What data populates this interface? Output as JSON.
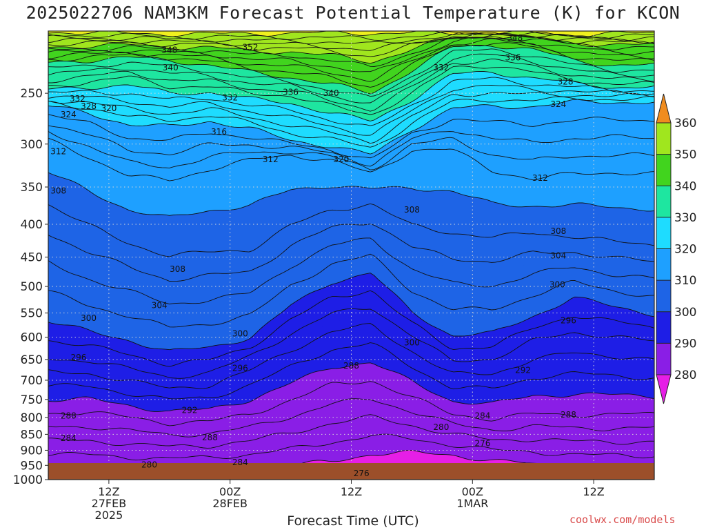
{
  "chart_data": {
    "type": "heatmap",
    "title": "2025022706 NAM3KM Forecast Potential Temperature (K) for KCON",
    "xlabel": "Forecast Time (UTC)",
    "ylabel": "",
    "credit": "coolwx.com/models",
    "y_axis": {
      "scale": "log",
      "inverted": true,
      "ylim": [
        1000,
        200
      ],
      "ticks": [
        250,
        300,
        350,
        400,
        450,
        500,
        550,
        600,
        650,
        700,
        750,
        800,
        850,
        900,
        950,
        1000
      ]
    },
    "x_axis": {
      "range_hours": [
        0,
        60
      ],
      "ticks": [
        {
          "hour": 6,
          "labels": [
            "12Z",
            "27FEB",
            "2025"
          ]
        },
        {
          "hour": 18,
          "labels": [
            "00Z",
            "28FEB"
          ]
        },
        {
          "hour": 30,
          "labels": [
            "12Z"
          ]
        },
        {
          "hour": 42,
          "labels": [
            "00Z",
            "1MAR"
          ]
        },
        {
          "hour": 54,
          "labels": [
            "12Z"
          ]
        }
      ]
    },
    "colorbar": {
      "unit": "K",
      "levels": [
        280,
        290,
        300,
        310,
        320,
        330,
        340,
        350,
        360
      ],
      "colors": [
        "#e61ee6",
        "#8a1ee6",
        "#1e1ee6",
        "#1e64e6",
        "#1ea0ff",
        "#1edcff",
        "#1ee6a0",
        "#41d41e",
        "#a0e61e",
        "#f0f01e",
        "#f0c81e",
        "#f08c1e"
      ]
    },
    "contour_interval_K": 2,
    "isentrope_pressure_hPa": {
      "hours": [
        0,
        4,
        8,
        12,
        16,
        20,
        24,
        28,
        32,
        36,
        40,
        44,
        48,
        52,
        56,
        60
      ],
      "levels": [
        {
          "theta": 280,
          "p": [
            958,
            963,
            967,
            968,
            964,
            958,
            951,
            937,
            912,
            908,
            915,
            934,
            946,
            960,
            962,
            964
          ]
        },
        {
          "theta": 288,
          "p": [
            788,
            785,
            800,
            816,
            812,
            790,
            752,
            712,
            700,
            745,
            790,
            805,
            790,
            792,
            792,
            790
          ]
        },
        {
          "theta": 296,
          "p": [
            648,
            652,
            672,
            692,
            682,
            642,
            592,
            552,
            538,
            596,
            654,
            648,
            608,
            590,
            598,
            610
          ]
        },
        {
          "theta": 300,
          "p": [
            566,
            588,
            606,
            632,
            622,
            600,
            536,
            492,
            476,
            548,
            596,
            592,
            556,
            520,
            538,
            552
          ]
        },
        {
          "theta": 308,
          "p": [
            372,
            402,
            428,
            448,
            442,
            438,
            402,
            380,
            372,
            402,
            412,
            420,
            412,
            418,
            426,
            430
          ]
        },
        {
          "theta": 312,
          "p": [
            296,
            314,
            336,
            342,
            328,
            318,
            312,
            318,
            334,
            306,
            306,
            330,
            340,
            334,
            332,
            334
          ]
        },
        {
          "theta": 320,
          "p": [
            262,
            268,
            280,
            282,
            276,
            284,
            296,
            302,
            312,
            284,
            264,
            262,
            262,
            258,
            258,
            258
          ]
        },
        {
          "theta": 332,
          "p": [
            244,
            240,
            236,
            244,
            244,
            250,
            252,
            262,
            270,
            250,
            228,
            226,
            232,
            238,
            242,
            242
          ]
        },
        {
          "theta": 340,
          "p": [
            224,
            222,
            220,
            222,
            226,
            232,
            236,
            242,
            250,
            230,
            212,
            210,
            214,
            222,
            226,
            226
          ]
        },
        {
          "theta": 348,
          "p": [
            214,
            213,
            212,
            214,
            214,
            218,
            218,
            222,
            228,
            216,
            206,
            204,
            206,
            210,
            212,
            212
          ]
        },
        {
          "theta": 356,
          "p": [
            205,
            205,
            205,
            206,
            206,
            207,
            207,
            208,
            210,
            206,
            203,
            202,
            203,
            205,
            205,
            205
          ]
        }
      ]
    },
    "contour_labels": [
      {
        "text": "348",
        "hour": 12.0,
        "p": 214
      },
      {
        "text": "352",
        "hour": 20.0,
        "p": 212
      },
      {
        "text": "348",
        "hour": 46.2,
        "p": 205
      },
      {
        "text": "336",
        "hour": 46.0,
        "p": 220
      },
      {
        "text": "340",
        "hour": 12.1,
        "p": 228
      },
      {
        "text": "332",
        "hour": 38.9,
        "p": 228
      },
      {
        "text": "328",
        "hour": 51.2,
        "p": 240
      },
      {
        "text": "324",
        "hour": 50.5,
        "p": 260
      },
      {
        "text": "332",
        "hour": 2.9,
        "p": 255
      },
      {
        "text": "328",
        "hour": 4.0,
        "p": 262
      },
      {
        "text": "320",
        "hour": 6.0,
        "p": 264
      },
      {
        "text": "324",
        "hour": 2.0,
        "p": 270
      },
      {
        "text": "332",
        "hour": 18.0,
        "p": 254
      },
      {
        "text": "336",
        "hour": 24.0,
        "p": 249
      },
      {
        "text": "340",
        "hour": 28.0,
        "p": 250
      },
      {
        "text": "316",
        "hour": 16.9,
        "p": 287
      },
      {
        "text": "312",
        "hour": 1.0,
        "p": 308
      },
      {
        "text": "312",
        "hour": 22.0,
        "p": 317
      },
      {
        "text": "320",
        "hour": 29.0,
        "p": 317
      },
      {
        "text": "312",
        "hour": 48.7,
        "p": 339
      },
      {
        "text": "308",
        "hour": 1.0,
        "p": 355
      },
      {
        "text": "308",
        "hour": 36.0,
        "p": 380
      },
      {
        "text": "308",
        "hour": 50.5,
        "p": 410
      },
      {
        "text": "304",
        "hour": 50.5,
        "p": 448
      },
      {
        "text": "308",
        "hour": 12.8,
        "p": 470
      },
      {
        "text": "300",
        "hour": 50.4,
        "p": 497
      },
      {
        "text": "304",
        "hour": 11.0,
        "p": 535
      },
      {
        "text": "300",
        "hour": 4.0,
        "p": 560
      },
      {
        "text": "300",
        "hour": 19.0,
        "p": 592
      },
      {
        "text": "300",
        "hour": 36.0,
        "p": 612
      },
      {
        "text": "296",
        "hour": 51.5,
        "p": 565
      },
      {
        "text": "296",
        "hour": 3.0,
        "p": 645
      },
      {
        "text": "296",
        "hour": 19.0,
        "p": 670
      },
      {
        "text": "288",
        "hour": 30.0,
        "p": 665
      },
      {
        "text": "292",
        "hour": 47.0,
        "p": 675
      },
      {
        "text": "292",
        "hour": 14.0,
        "p": 780
      },
      {
        "text": "288",
        "hour": 2.0,
        "p": 795
      },
      {
        "text": "288",
        "hour": 16.0,
        "p": 860
      },
      {
        "text": "284",
        "hour": 2.0,
        "p": 862
      },
      {
        "text": "284",
        "hour": 43.0,
        "p": 795
      },
      {
        "text": "288",
        "hour": 51.5,
        "p": 792
      },
      {
        "text": "280",
        "hour": 38.9,
        "p": 828
      },
      {
        "text": "276",
        "hour": 43.0,
        "p": 878
      },
      {
        "text": "280",
        "hour": 10.0,
        "p": 948
      },
      {
        "text": "284",
        "hour": 19.0,
        "p": 940
      },
      {
        "text": "276",
        "hour": 31.0,
        "p": 978
      }
    ]
  }
}
